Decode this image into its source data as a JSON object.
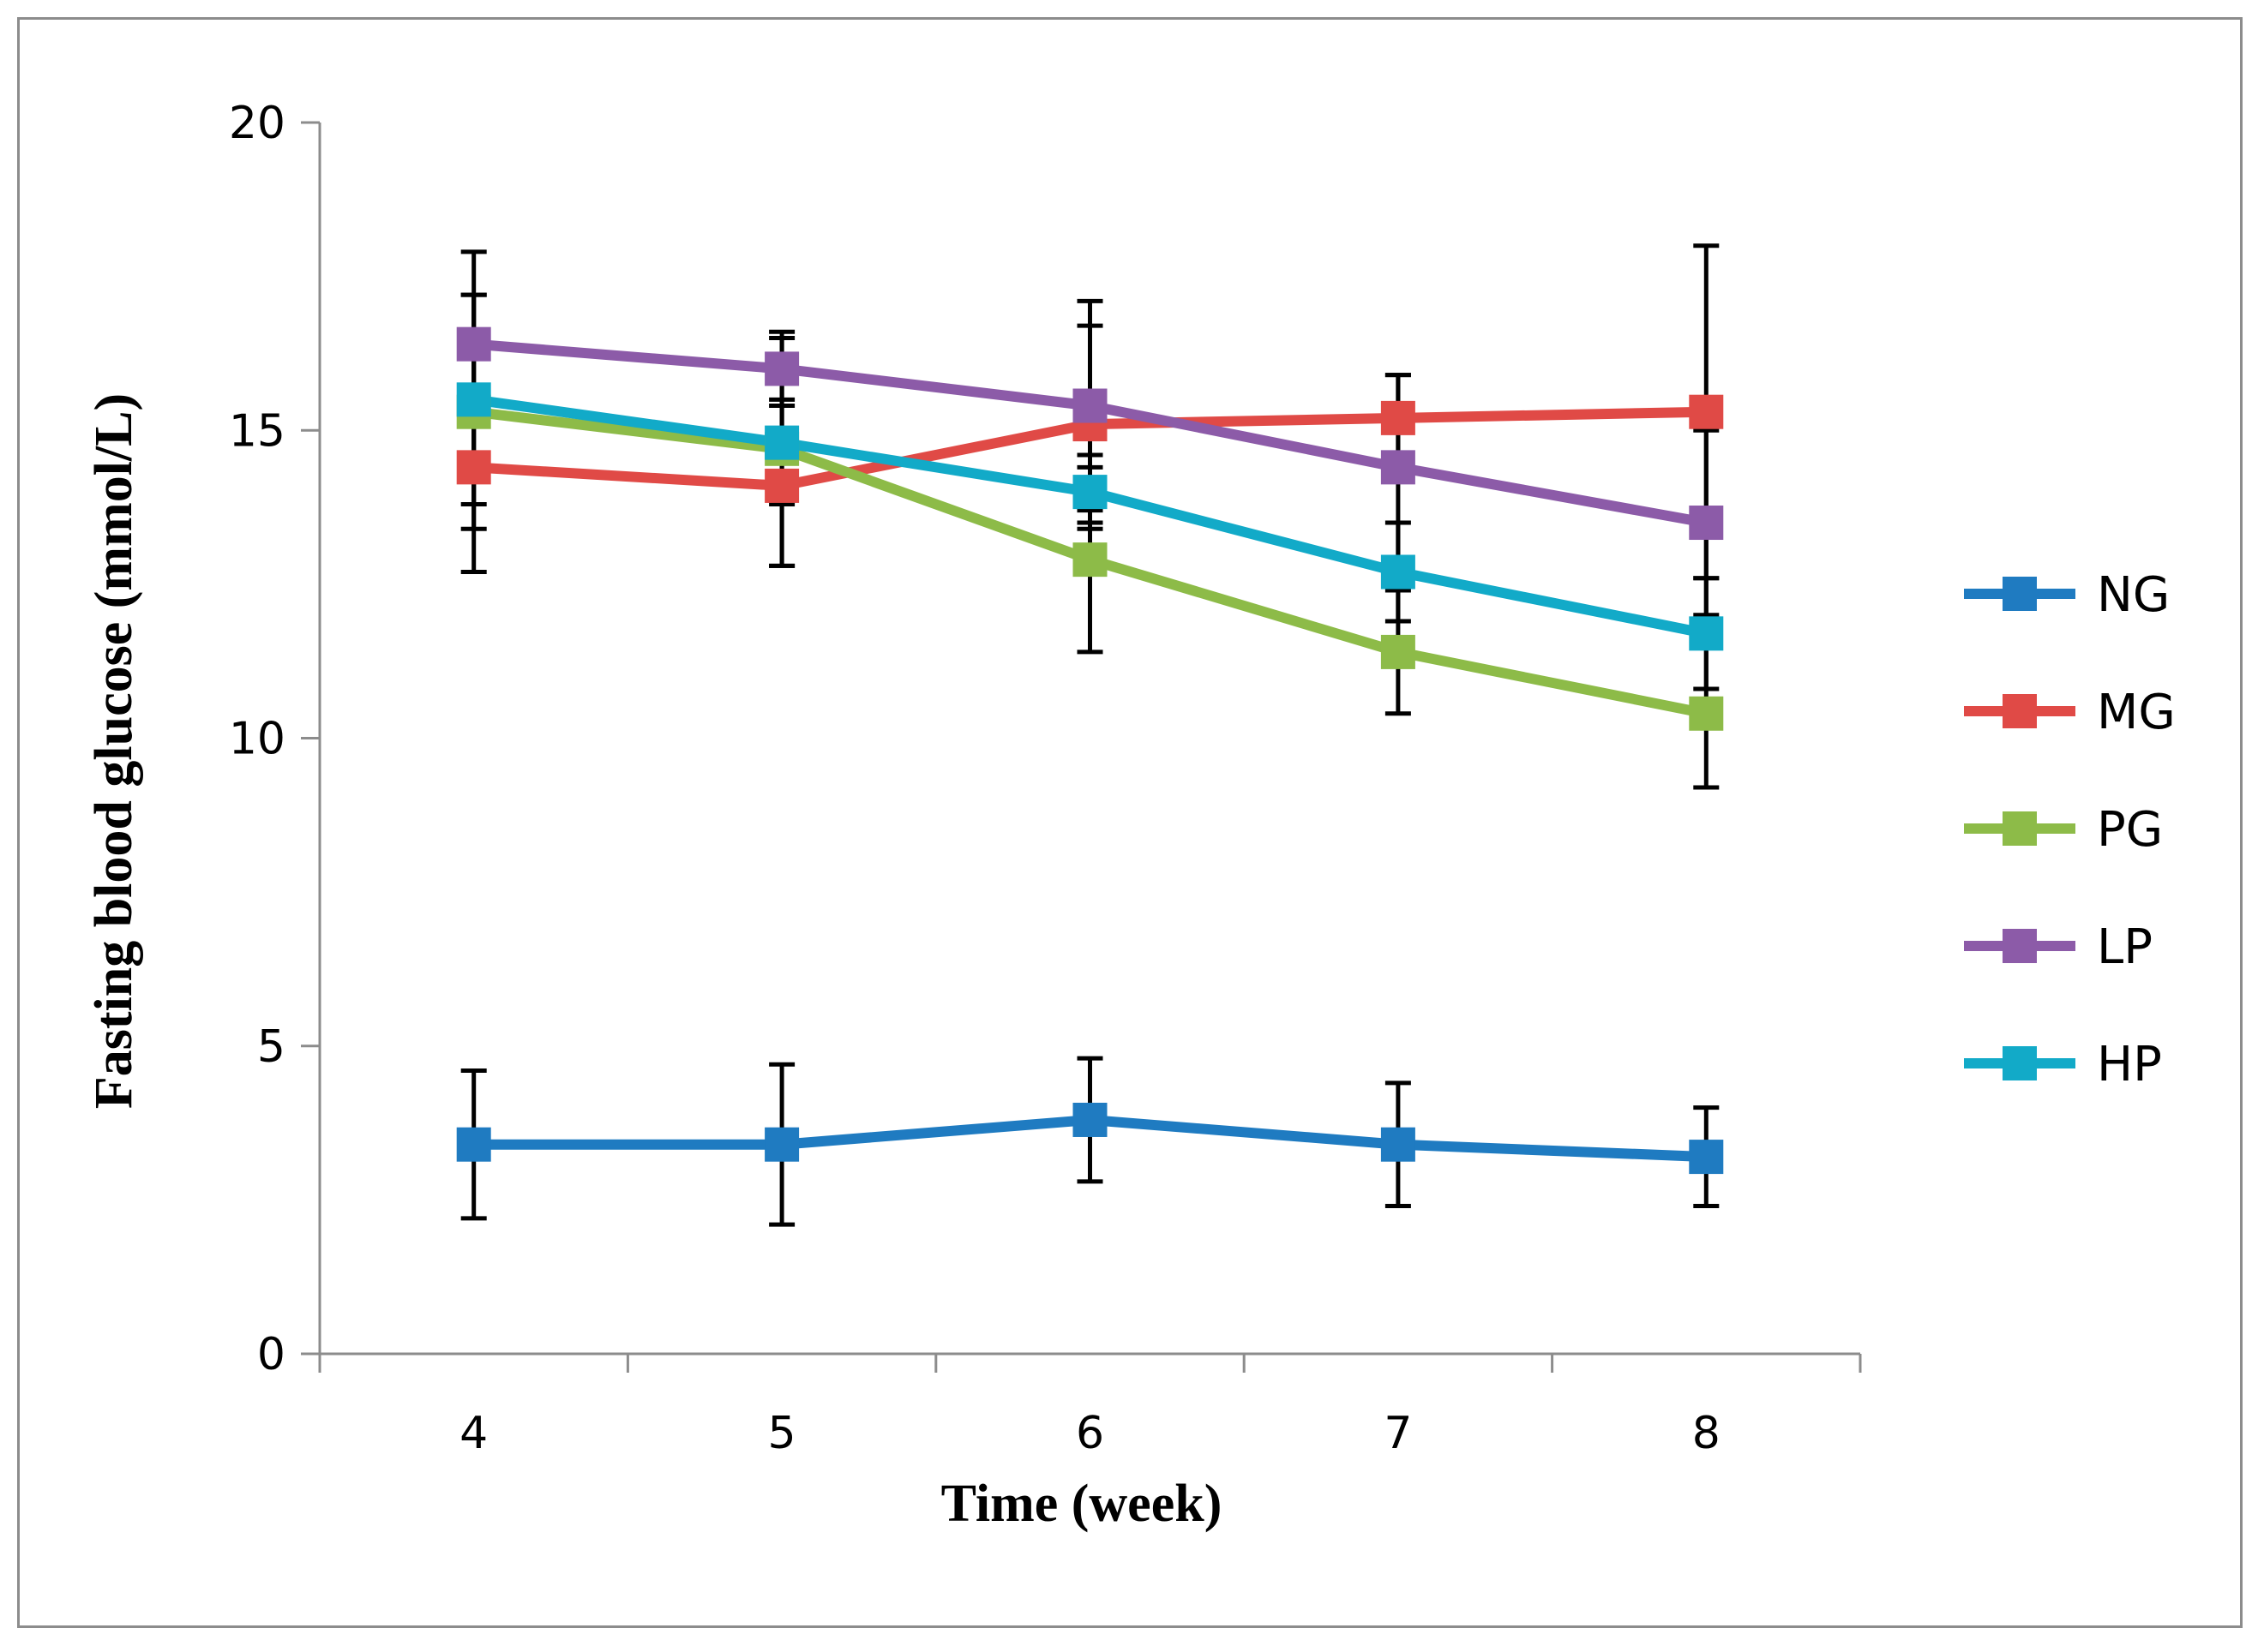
{
  "chart_data": {
    "type": "line",
    "title": "",
    "xlabel": "Time (week)",
    "ylabel": "Fasting blood glucose (mmol/L)",
    "x": [
      4,
      5,
      6,
      7,
      8
    ],
    "x_tick_labels": [
      "4",
      "5",
      "6",
      "7",
      "8"
    ],
    "ylim": [
      0,
      20
    ],
    "y_ticks": [
      0,
      5,
      10,
      15,
      20
    ],
    "y_tick_labels": [
      "0",
      "5",
      "10",
      "15",
      "20"
    ],
    "grid": false,
    "legend_position": "right",
    "series": [
      {
        "name": "NG",
        "color": "#1f7bc1",
        "values": [
          3.4,
          3.4,
          3.8,
          3.4,
          3.2
        ],
        "error": [
          1.2,
          1.3,
          1.0,
          1.0,
          0.8
        ]
      },
      {
        "name": "MG",
        "color": "#e04a46",
        "values": [
          14.4,
          14.1,
          15.1,
          15.2,
          15.3
        ],
        "error": [
          1.0,
          1.3,
          1.6,
          0.7,
          2.7
        ]
      },
      {
        "name": "PG",
        "color": "#8dbb48",
        "values": [
          15.3,
          14.7,
          12.9,
          11.4,
          10.4
        ],
        "error": [
          2.6,
          1.9,
          1.5,
          1.0,
          1.2
        ]
      },
      {
        "name": "LP",
        "color": "#8c5ba8",
        "values": [
          16.4,
          16.0,
          15.4,
          14.4,
          13.5
        ],
        "error": [
          0.8,
          0.5,
          1.7,
          1.5,
          1.5
        ]
      },
      {
        "name": "HP",
        "color": "#12aac8",
        "values": [
          15.5,
          14.8,
          14.0,
          12.7,
          11.7
        ],
        "error": [
          1.7,
          1.0,
          0.6,
          0.8,
          0.9
        ]
      }
    ]
  }
}
